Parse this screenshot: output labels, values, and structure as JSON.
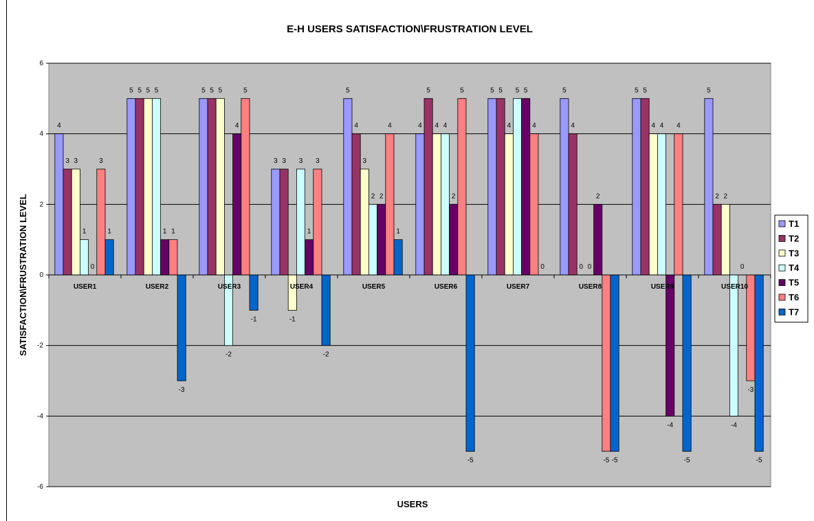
{
  "chart_data": {
    "type": "bar",
    "title": "E-H USERS SATISFACTION\\FRUSTRATION LEVEL",
    "xlabel": "USERS",
    "ylabel": "SATISFACTION\\FRUSTRATION LEVEL",
    "ylim": [
      -6,
      6
    ],
    "yticks": [
      -6,
      -4,
      -2,
      0,
      2,
      4,
      6
    ],
    "grid": true,
    "legend_position": "right",
    "categories": [
      "USER1",
      "USER2",
      "USER3",
      "USER4",
      "USER5",
      "USER6",
      "USER7",
      "USER8",
      "USER9",
      "USER10"
    ],
    "series": [
      {
        "name": "T1",
        "color": "#9999ff",
        "values": [
          4,
          5,
          5,
          3,
          5,
          4,
          5,
          5,
          5,
          5
        ]
      },
      {
        "name": "T2",
        "color": "#993366",
        "values": [
          3,
          5,
          5,
          3,
          4,
          5,
          5,
          4,
          5,
          2
        ]
      },
      {
        "name": "T3",
        "color": "#ffffcc",
        "values": [
          3,
          5,
          5,
          -1,
          3,
          4,
          4,
          0,
          4,
          2
        ]
      },
      {
        "name": "T4",
        "color": "#ccffff",
        "values": [
          1,
          5,
          -2,
          3,
          2,
          4,
          5,
          0,
          4,
          -4
        ]
      },
      {
        "name": "T5",
        "color": "#660066",
        "values": [
          0,
          1,
          4,
          1,
          2,
          2,
          5,
          2,
          -4,
          0
        ]
      },
      {
        "name": "T6",
        "color": "#ff8080",
        "values": [
          3,
          1,
          5,
          3,
          4,
          5,
          4,
          -5,
          4,
          -3
        ]
      },
      {
        "name": "T7",
        "color": "#0066cc",
        "values": [
          1,
          -3,
          -1,
          -2,
          1,
          -5,
          0,
          -5,
          -5,
          -5
        ]
      }
    ],
    "plot_background": "#c0c0c0"
  }
}
